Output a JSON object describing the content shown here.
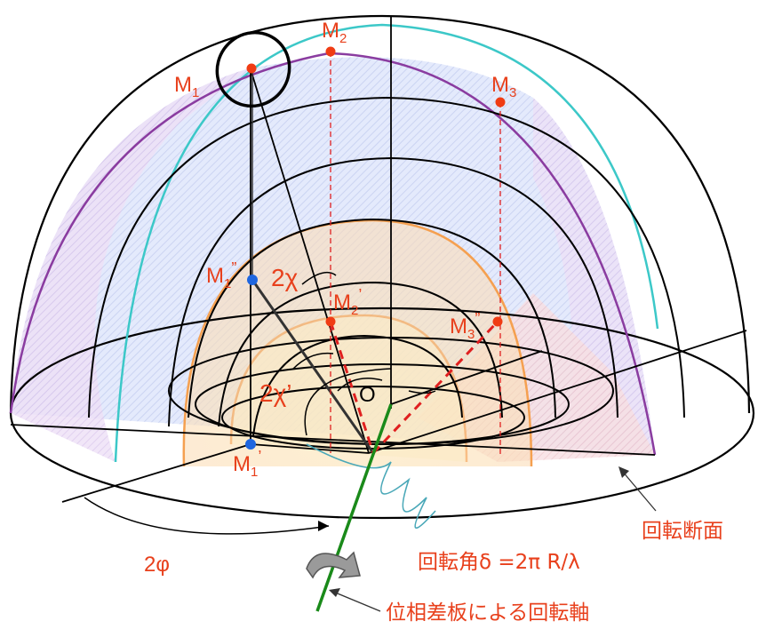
{
  "labels": {
    "M1": "M",
    "M1_sub": "1",
    "M2": "M",
    "M2_sub": "2",
    "M3": "M",
    "M3_sub": "3",
    "M1pp": "M",
    "M1pp_sub": "1",
    "M1pp_mark": "”",
    "M2p": "M",
    "M2p_sub": "2",
    "M2p_mark": "’",
    "M3pp": "M",
    "M3pp_sub": "3",
    "M3pp_mark": "”",
    "M1p": "M",
    "M1p_sub": "1",
    "M1p_mark": "’",
    "two_chi": "2χ",
    "two_chi_prime": "2χ’",
    "origin": "O",
    "two_phi": "2φ",
    "rotation_angle": "回転角δ =2π R/λ",
    "rotation_section": "回転断面",
    "rotation_axis": "位相差板による回転軸"
  },
  "colors": {
    "label": "#e8401c",
    "point_red": "#f03c14",
    "point_blue": "#1e66e0",
    "cyan": "#3cc8c8",
    "purple": "#8a3ca0",
    "orange": "#f5a050",
    "axis_green": "#1a8a1a",
    "dashed_red": "#e02020"
  }
}
